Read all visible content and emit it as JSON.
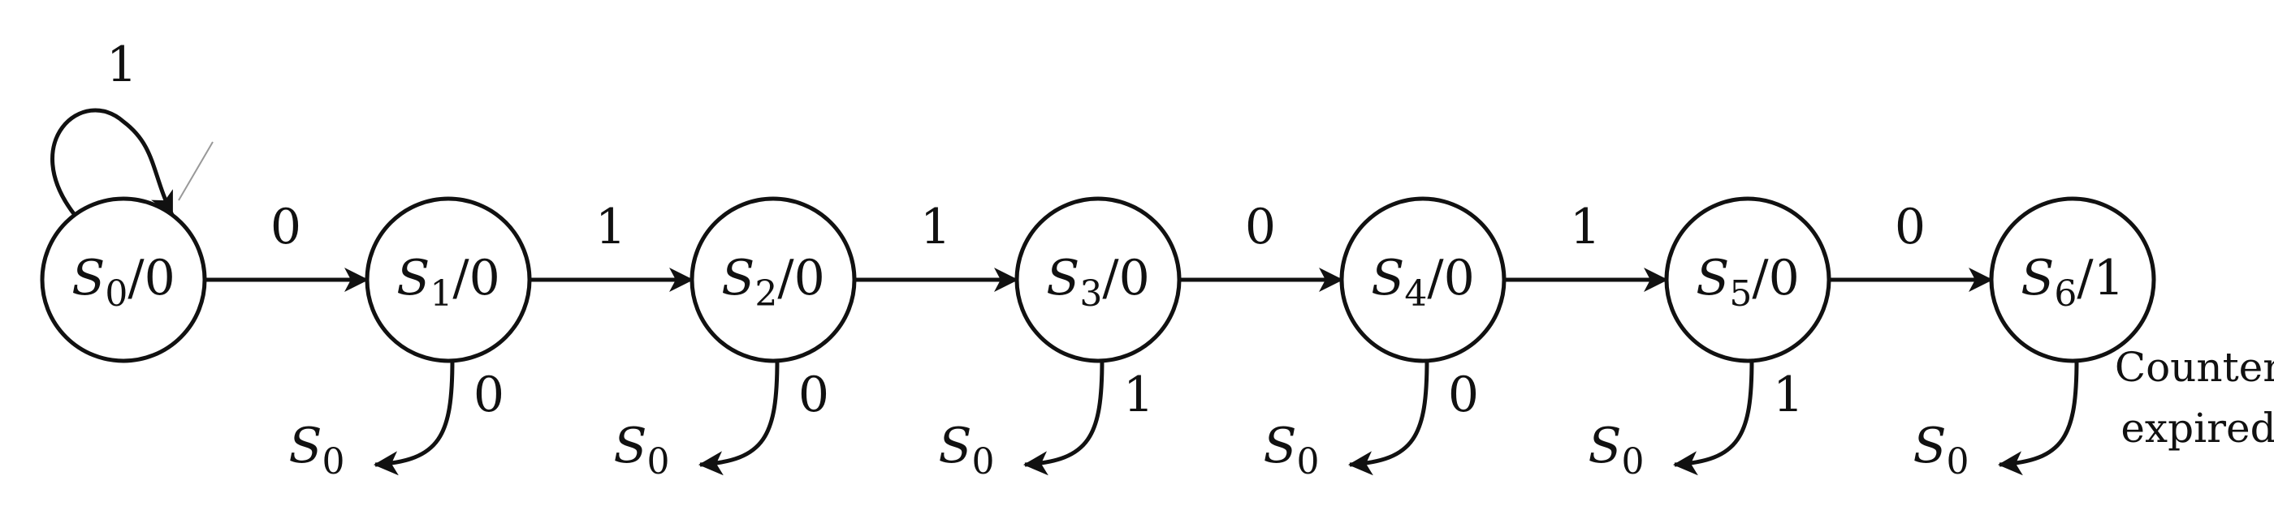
{
  "states": [
    {
      "id": "S0",
      "name": "S",
      "sub": "0",
      "output": "/0"
    },
    {
      "id": "S1",
      "name": "S",
      "sub": "1",
      "output": "/0"
    },
    {
      "id": "S2",
      "name": "S",
      "sub": "2",
      "output": "/0"
    },
    {
      "id": "S3",
      "name": "S",
      "sub": "3",
      "output": "/0"
    },
    {
      "id": "S4",
      "name": "S",
      "sub": "4",
      "output": "/0"
    },
    {
      "id": "S5",
      "name": "S",
      "sub": "5",
      "output": "/0"
    },
    {
      "id": "S6",
      "name": "S",
      "sub": "6",
      "output": "/1"
    }
  ],
  "self_loop": {
    "state": "S0",
    "label": "1"
  },
  "transitions": [
    {
      "from": "S0",
      "to": "S1",
      "label": "0"
    },
    {
      "from": "S1",
      "to": "S2",
      "label": "1"
    },
    {
      "from": "S2",
      "to": "S3",
      "label": "1"
    },
    {
      "from": "S3",
      "to": "S4",
      "label": "0"
    },
    {
      "from": "S4",
      "to": "S5",
      "label": "1"
    },
    {
      "from": "S5",
      "to": "S6",
      "label": "0"
    }
  ],
  "reset_transitions": [
    {
      "from": "S1",
      "target": {
        "name": "S",
        "sub": "0"
      },
      "label": "0"
    },
    {
      "from": "S2",
      "target": {
        "name": "S",
        "sub": "0"
      },
      "label": "0"
    },
    {
      "from": "S3",
      "target": {
        "name": "S",
        "sub": "0"
      },
      "label": "1"
    },
    {
      "from": "S4",
      "target": {
        "name": "S",
        "sub": "0"
      },
      "label": "0"
    },
    {
      "from": "S5",
      "target": {
        "name": "S",
        "sub": "0"
      },
      "label": "1"
    },
    {
      "from": "S6",
      "target": {
        "name": "S",
        "sub": "0"
      },
      "label": "Counter expired",
      "label_lines": [
        "Counter",
        "expired"
      ]
    }
  ]
}
